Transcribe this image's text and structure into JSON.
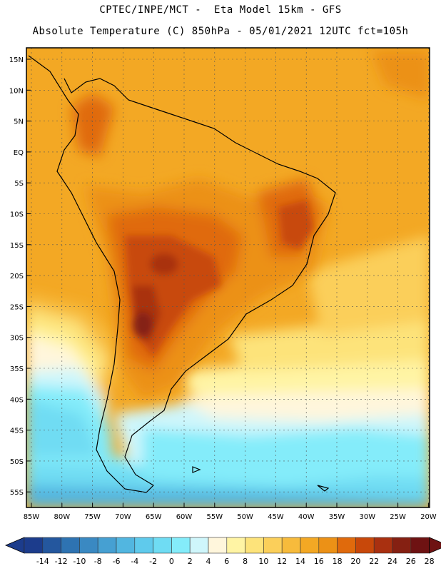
{
  "header": {
    "line1": "CPTEC/INPE/MCT -  Eta Model 15km - GFS",
    "line2": "Absolute Temperature (C) 850hPa - 05/01/2021 12UTC fct=105h"
  },
  "map": {
    "lat_labels": [
      "15N",
      "10N",
      "5N",
      "EQ",
      "5S",
      "10S",
      "15S",
      "20S",
      "25S",
      "30S",
      "35S",
      "40S",
      "45S",
      "50S",
      "55S"
    ],
    "lon_labels": [
      "85W",
      "80W",
      "75W",
      "70W",
      "65W",
      "60W",
      "55W",
      "50W",
      "45W",
      "40W",
      "35W",
      "30W",
      "25W",
      "20W"
    ]
  },
  "legend": {
    "labels": [
      "-14",
      "-12",
      "-10",
      "-8",
      "-6",
      "-4",
      "-2",
      "0",
      "2",
      "4",
      "6",
      "8",
      "10",
      "12",
      "14",
      "16",
      "18",
      "20",
      "22",
      "24",
      "26",
      "28"
    ],
    "colors": [
      "#1c3c8c",
      "#24579e",
      "#2e73b2",
      "#3a89c2",
      "#46a0d2",
      "#52b6e0",
      "#5fcaec",
      "#6fdcf3",
      "#84ecfa",
      "#cff6fb",
      "#fff6dc",
      "#fff4a4",
      "#fde37a",
      "#fbcf5a",
      "#f7bb3c",
      "#f3a824",
      "#ec9116",
      "#e06a0c",
      "#c8480a",
      "#a93010",
      "#852012",
      "#6e1212"
    ]
  }
}
